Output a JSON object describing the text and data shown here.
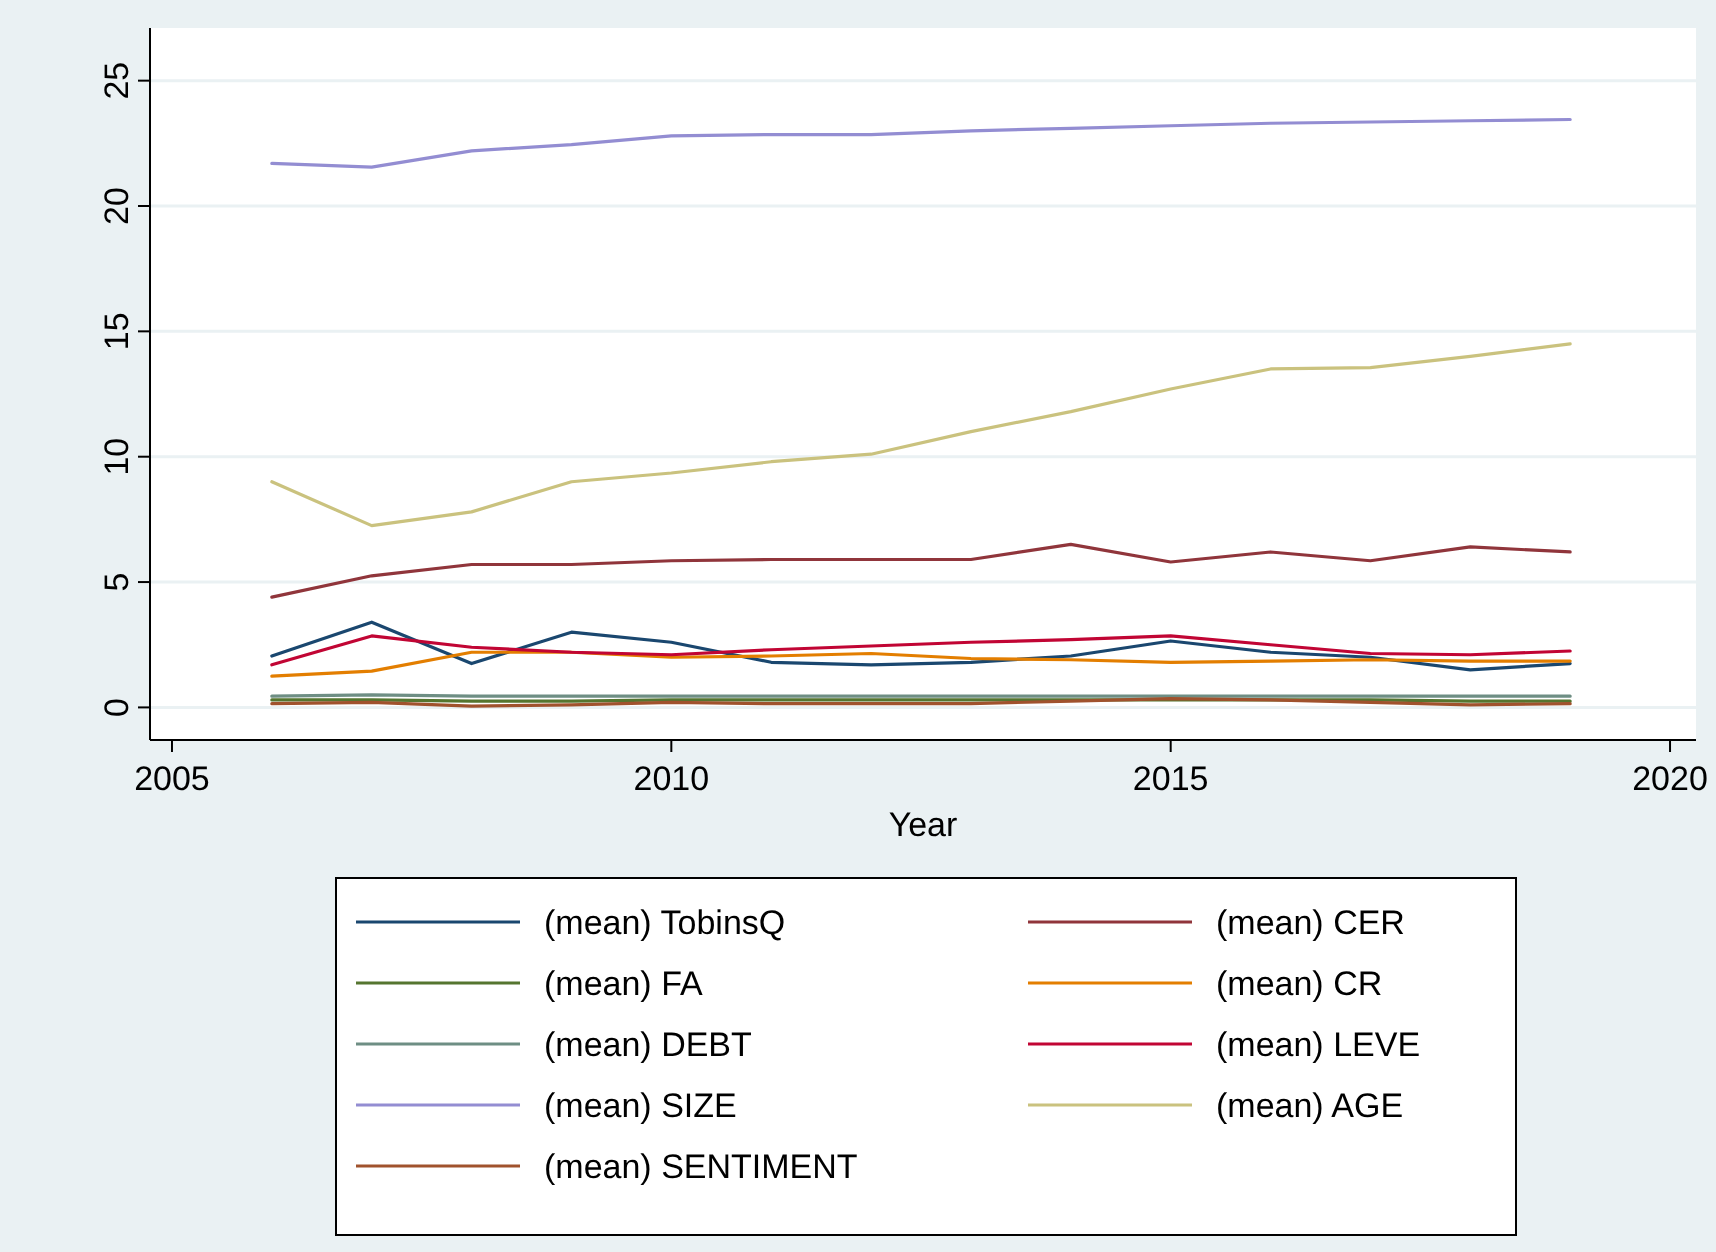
{
  "chart_data": {
    "type": "line",
    "xlabel": "Year",
    "x": [
      2006,
      2007,
      2008,
      2009,
      2010,
      2011,
      2012,
      2013,
      2014,
      2015,
      2016,
      2017,
      2018,
      2019
    ],
    "xlim": [
      2004.78,
      2020.26
    ],
    "xticks": [
      2005,
      2010,
      2015,
      2020
    ],
    "ylim": [
      -1.3,
      27.1
    ],
    "yticks": [
      0,
      5,
      10,
      15,
      20,
      25
    ],
    "grid": "y",
    "legend": "bottom",
    "marker": "none",
    "line_style": "solid",
    "series": [
      {
        "name": "(mean) TobinsQ",
        "color": "#1a476f",
        "values": [
          2.05,
          3.4,
          1.75,
          3.0,
          2.6,
          1.8,
          1.7,
          1.8,
          2.05,
          2.65,
          2.2,
          2.0,
          1.5,
          1.75
        ]
      },
      {
        "name": "(mean) CER",
        "color": "#90353b",
        "values": [
          4.4,
          5.25,
          5.7,
          5.7,
          5.85,
          5.9,
          5.9,
          5.9,
          6.5,
          5.8,
          6.2,
          5.85,
          6.4,
          6.2
        ]
      },
      {
        "name": "(mean) FA",
        "color": "#55752f",
        "values": [
          0.3,
          0.3,
          0.25,
          0.25,
          0.3,
          0.3,
          0.3,
          0.3,
          0.3,
          0.3,
          0.3,
          0.3,
          0.25,
          0.25
        ]
      },
      {
        "name": "(mean) CR",
        "color": "#e37e00",
        "values": [
          1.25,
          1.45,
          2.2,
          2.2,
          2.0,
          2.05,
          2.15,
          1.95,
          1.9,
          1.8,
          1.85,
          1.9,
          1.85,
          1.85
        ]
      },
      {
        "name": "(mean) DEBT",
        "color": "#6e8e84",
        "values": [
          0.45,
          0.5,
          0.45,
          0.45,
          0.45,
          0.45,
          0.45,
          0.45,
          0.45,
          0.45,
          0.45,
          0.45,
          0.45,
          0.45
        ]
      },
      {
        "name": "(mean) LEVE",
        "color": "#c10534",
        "values": [
          1.7,
          2.85,
          2.4,
          2.2,
          2.1,
          2.3,
          2.45,
          2.6,
          2.7,
          2.85,
          2.5,
          2.15,
          2.1,
          2.25
        ]
      },
      {
        "name": "(mean) SIZE",
        "color": "#938dd2",
        "values": [
          21.7,
          21.55,
          22.2,
          22.45,
          22.8,
          22.85,
          22.85,
          23.0,
          23.1,
          23.2,
          23.3,
          23.35,
          23.4,
          23.45
        ]
      },
      {
        "name": "(mean) AGE",
        "color": "#cac27e",
        "values": [
          9.0,
          7.25,
          7.8,
          9.0,
          9.35,
          9.8,
          10.1,
          11.0,
          11.8,
          12.7,
          13.5,
          13.55,
          14.0,
          14.5
        ]
      },
      {
        "name": "(mean) SENTIMENT",
        "color": "#a0522d",
        "values": [
          0.15,
          0.2,
          0.05,
          0.1,
          0.2,
          0.15,
          0.15,
          0.15,
          0.25,
          0.35,
          0.3,
          0.2,
          0.1,
          0.15
        ]
      }
    ]
  }
}
